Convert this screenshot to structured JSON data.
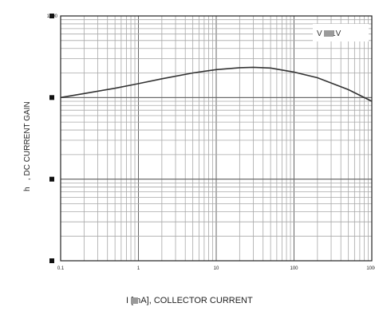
{
  "chart_data": {
    "type": "line",
    "x_scale": "log",
    "y_scale": "log",
    "xlim": [
      0.1,
      1000
    ],
    "ylim": [
      1,
      1000
    ],
    "x_tick_labels": [
      "0.1",
      "1",
      "10",
      "100",
      "1000"
    ],
    "y_tick_labels": [
      "1000",
      "",
      "",
      ""
    ],
    "ylabel_symbol": "h",
    "ylabel": ", DC CURRENT GAIN",
    "xlabel": "I  [mA], COLLECTOR CURRENT",
    "annotation": "V    = 1V",
    "grid": true,
    "series": [
      {
        "x": [
          0.1,
          0.2,
          0.5,
          1,
          2,
          5,
          10,
          20,
          30,
          50,
          100,
          200,
          500,
          1000
        ],
        "y": [
          100,
          112,
          130,
          148,
          170,
          200,
          220,
          232,
          235,
          230,
          205,
          175,
          125,
          90
        ]
      }
    ]
  }
}
